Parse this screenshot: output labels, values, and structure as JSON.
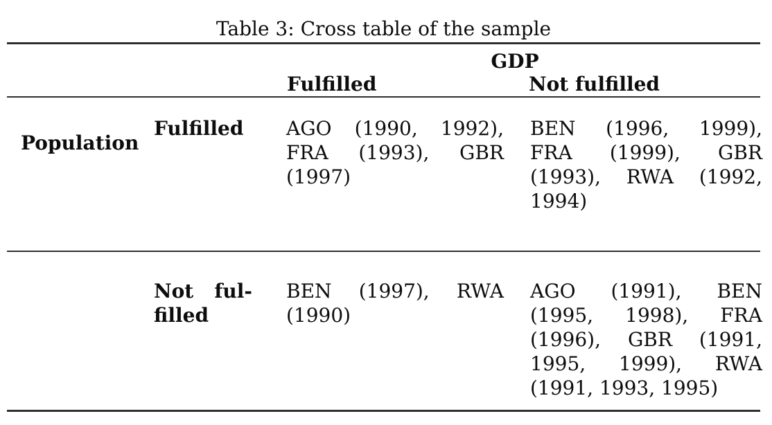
{
  "colors": {
    "background": "#ffffff",
    "text": "#0d0d0d",
    "rule": "#2e2e2e"
  },
  "title": "Table 3: Cross table of the sample",
  "table": {
    "col_group_header": "GDP",
    "col_headers": {
      "fulfilled": "Fulfilled",
      "not_fulfilled": "Not fulfilled"
    },
    "row_group_header": "Population",
    "rows": [
      {
        "label_lines": [
          [
            "Fulfilled"
          ]
        ],
        "gdp_fulfilled_lines": [
          [
            "AGO",
            "(1990,",
            "1992),"
          ],
          [
            "FRA",
            "(1993),",
            "GBR"
          ],
          [
            "(1997)"
          ]
        ],
        "gdp_not_fulfilled_lines": [
          [
            "BEN",
            "(1996,",
            "1999),"
          ],
          [
            "FRA",
            "(1999),",
            "GBR"
          ],
          [
            "(1993),",
            "RWA",
            "(1992,"
          ],
          [
            "1994)"
          ]
        ]
      },
      {
        "label_lines": [
          [
            "Not",
            "ful-"
          ],
          [
            "filled"
          ]
        ],
        "gdp_fulfilled_lines": [
          [
            "BEN",
            "(1997),",
            "RWA"
          ],
          [
            "(1990)"
          ]
        ],
        "gdp_not_fulfilled_lines": [
          [
            "AGO",
            "(1991),",
            "BEN"
          ],
          [
            "(1995,",
            "1998),",
            "FRA"
          ],
          [
            "(1996),",
            "GBR",
            "(1991,"
          ],
          [
            "1995,",
            "1999),",
            "RWA"
          ],
          [
            "(1991,",
            "1993,",
            "1995)"
          ]
        ]
      }
    ]
  }
}
